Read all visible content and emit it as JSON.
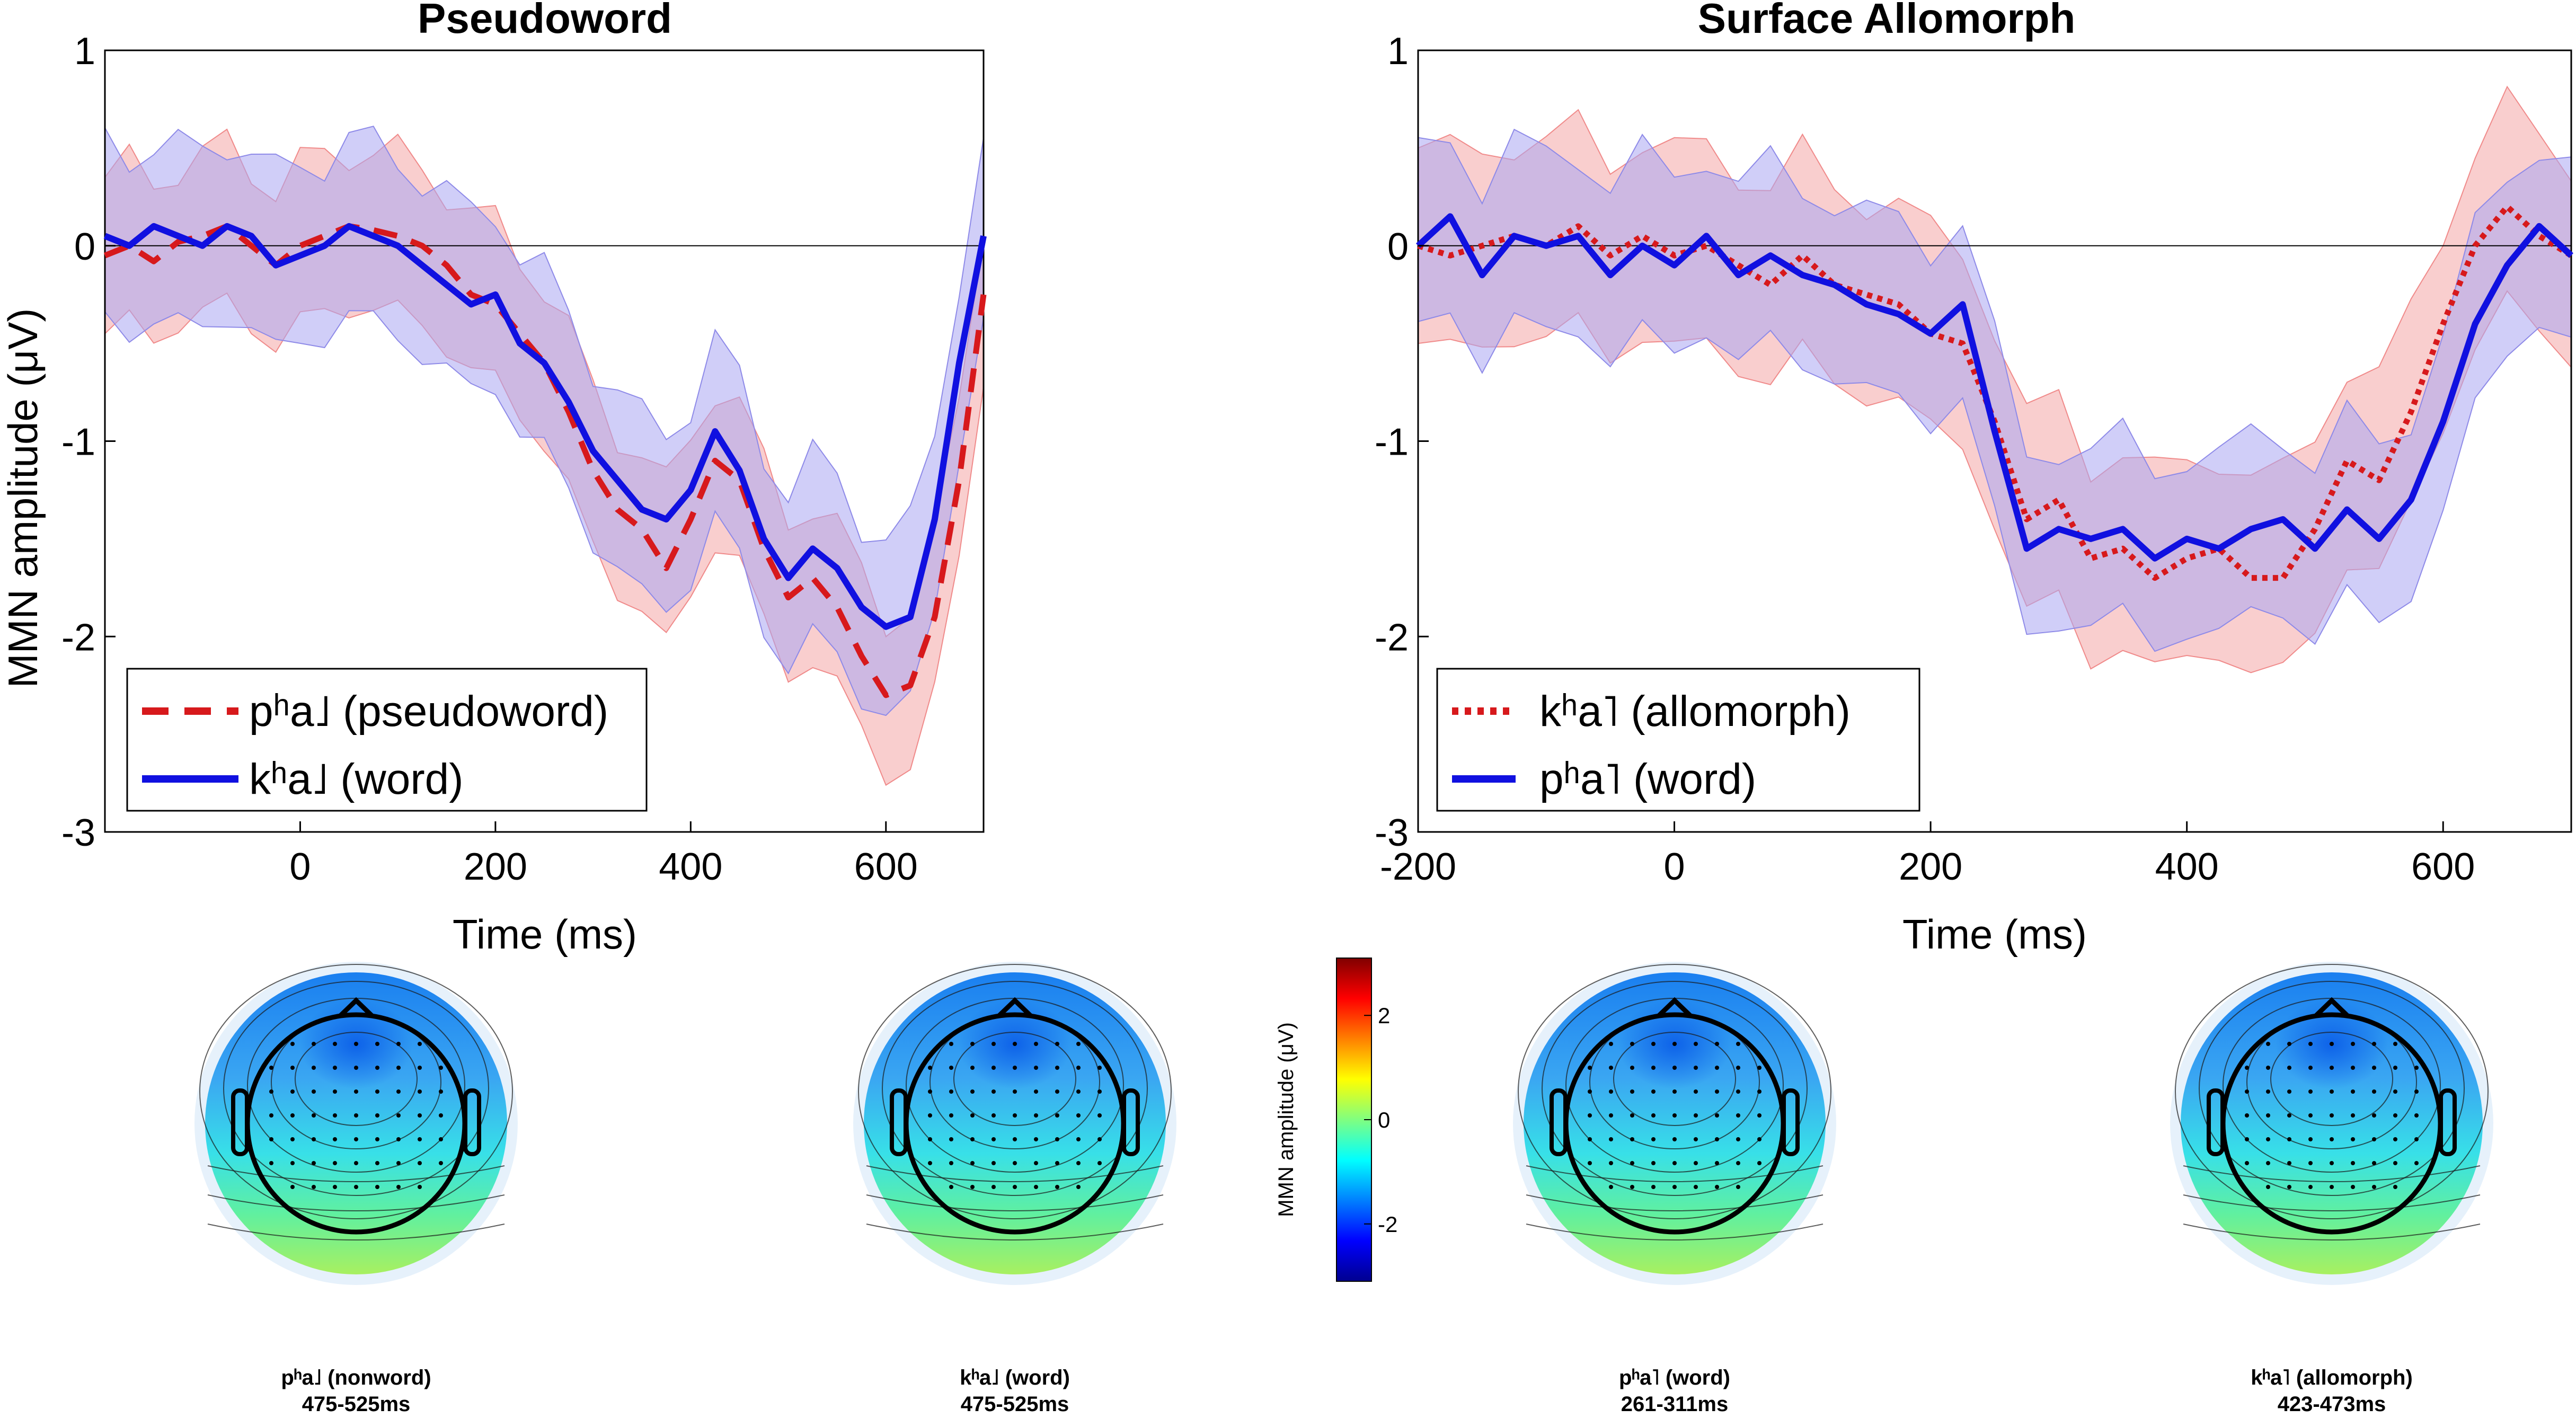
{
  "colors": {
    "red": "#d7191c",
    "blue": "#1010e0",
    "red_band": "#f4a6a6",
    "blue_band": "#a9a6f2"
  },
  "chart_data": [
    {
      "type": "line",
      "title": "Pseudoword",
      "xlabel": "Time (ms)",
      "ylabel": "MMN amplitude (μV)",
      "xlim": [
        -200,
        700
      ],
      "ylim": [
        -3,
        1
      ],
      "xticks": [
        0,
        200,
        400,
        600
      ],
      "yticks": [
        1,
        0,
        -1,
        -2,
        -3
      ],
      "legend_position": "bottom-left",
      "x": [
        -200,
        -175,
        -150,
        -125,
        -100,
        -75,
        -50,
        -25,
        0,
        25,
        50,
        75,
        100,
        125,
        150,
        175,
        200,
        225,
        250,
        275,
        300,
        325,
        350,
        375,
        400,
        425,
        450,
        475,
        500,
        525,
        550,
        575,
        600,
        625,
        650,
        675,
        700
      ],
      "series": [
        {
          "name": "pʰa˩ (pseudoword)",
          "style": "dashed",
          "color": "red",
          "values": [
            -0.05,
            0.0,
            -0.08,
            0.02,
            0.05,
            0.1,
            0.0,
            -0.1,
            0.0,
            0.05,
            0.1,
            0.08,
            0.05,
            0.0,
            -0.1,
            -0.25,
            -0.3,
            -0.45,
            -0.6,
            -0.85,
            -1.15,
            -1.35,
            -1.45,
            -1.65,
            -1.4,
            -1.1,
            -1.2,
            -1.55,
            -1.8,
            -1.7,
            -1.85,
            -2.1,
            -2.3,
            -2.25,
            -1.9,
            -1.2,
            -0.25
          ],
          "band_half_width": 0.4
        },
        {
          "name": "kʰa˩ (word)",
          "style": "solid",
          "color": "blue",
          "values": [
            0.05,
            0.0,
            0.1,
            0.05,
            0.0,
            0.1,
            0.05,
            -0.1,
            -0.05,
            0.0,
            0.1,
            0.05,
            0.0,
            -0.1,
            -0.2,
            -0.3,
            -0.25,
            -0.5,
            -0.6,
            -0.8,
            -1.05,
            -1.2,
            -1.35,
            -1.4,
            -1.25,
            -0.95,
            -1.15,
            -1.5,
            -1.7,
            -1.55,
            -1.65,
            -1.85,
            -1.95,
            -1.9,
            -1.4,
            -0.6,
            0.05
          ],
          "band_half_width": 0.45
        }
      ]
    },
    {
      "type": "line",
      "title": "Surface Allomorph",
      "xlabel": "Time (ms)",
      "ylabel": "",
      "xlim": [
        -200,
        700
      ],
      "ylim": [
        -3,
        1
      ],
      "xticks": [
        -200,
        0,
        200,
        400,
        600
      ],
      "yticks": [
        1,
        0,
        -1,
        -2,
        -3
      ],
      "legend_position": "bottom-left",
      "x": [
        -200,
        -175,
        -150,
        -125,
        -100,
        -75,
        -50,
        -25,
        0,
        25,
        50,
        75,
        100,
        125,
        150,
        175,
        200,
        225,
        250,
        275,
        300,
        325,
        350,
        375,
        400,
        425,
        450,
        475,
        500,
        525,
        550,
        575,
        600,
        625,
        650,
        675,
        700
      ],
      "series": [
        {
          "name": "kʰa˥ (allomorph)",
          "style": "dotted",
          "color": "red",
          "values": [
            0.0,
            -0.05,
            0.0,
            0.05,
            0.0,
            0.1,
            -0.05,
            0.05,
            -0.05,
            0.0,
            -0.1,
            -0.2,
            -0.05,
            -0.2,
            -0.25,
            -0.3,
            -0.45,
            -0.5,
            -0.9,
            -1.4,
            -1.3,
            -1.6,
            -1.55,
            -1.7,
            -1.6,
            -1.55,
            -1.7,
            -1.7,
            -1.45,
            -1.1,
            -1.2,
            -0.85,
            -0.4,
            0.0,
            0.2,
            0.05,
            -0.05
          ],
          "band_half_width": 0.5
        },
        {
          "name": "pʰa˥ (word)",
          "style": "solid",
          "color": "blue",
          "values": [
            0.0,
            0.15,
            -0.15,
            0.05,
            0.0,
            0.05,
            -0.15,
            0.0,
            -0.1,
            0.05,
            -0.15,
            -0.05,
            -0.15,
            -0.2,
            -0.3,
            -0.35,
            -0.45,
            -0.3,
            -0.95,
            -1.55,
            -1.45,
            -1.5,
            -1.45,
            -1.6,
            -1.5,
            -1.55,
            -1.45,
            -1.4,
            -1.55,
            -1.35,
            -1.5,
            -1.3,
            -0.9,
            -0.4,
            -0.1,
            0.1,
            -0.05
          ],
          "band_half_width": 0.45
        }
      ]
    }
  ],
  "colorbar": {
    "label": "MMN amplitude (μV)",
    "range": [
      -3.1,
      3.1
    ],
    "ticks": [
      2,
      0,
      -2
    ]
  },
  "topoplots": [
    {
      "label": "pʰa˩ (nonword)",
      "window": "475-525ms"
    },
    {
      "label": "kʰa˩ (word)",
      "window": "475-525ms"
    },
    {
      "label": "pʰa˥ (word)",
      "window": "261-311ms"
    },
    {
      "label": "kʰa˥ (allomorph)",
      "window": "423-473ms"
    }
  ]
}
